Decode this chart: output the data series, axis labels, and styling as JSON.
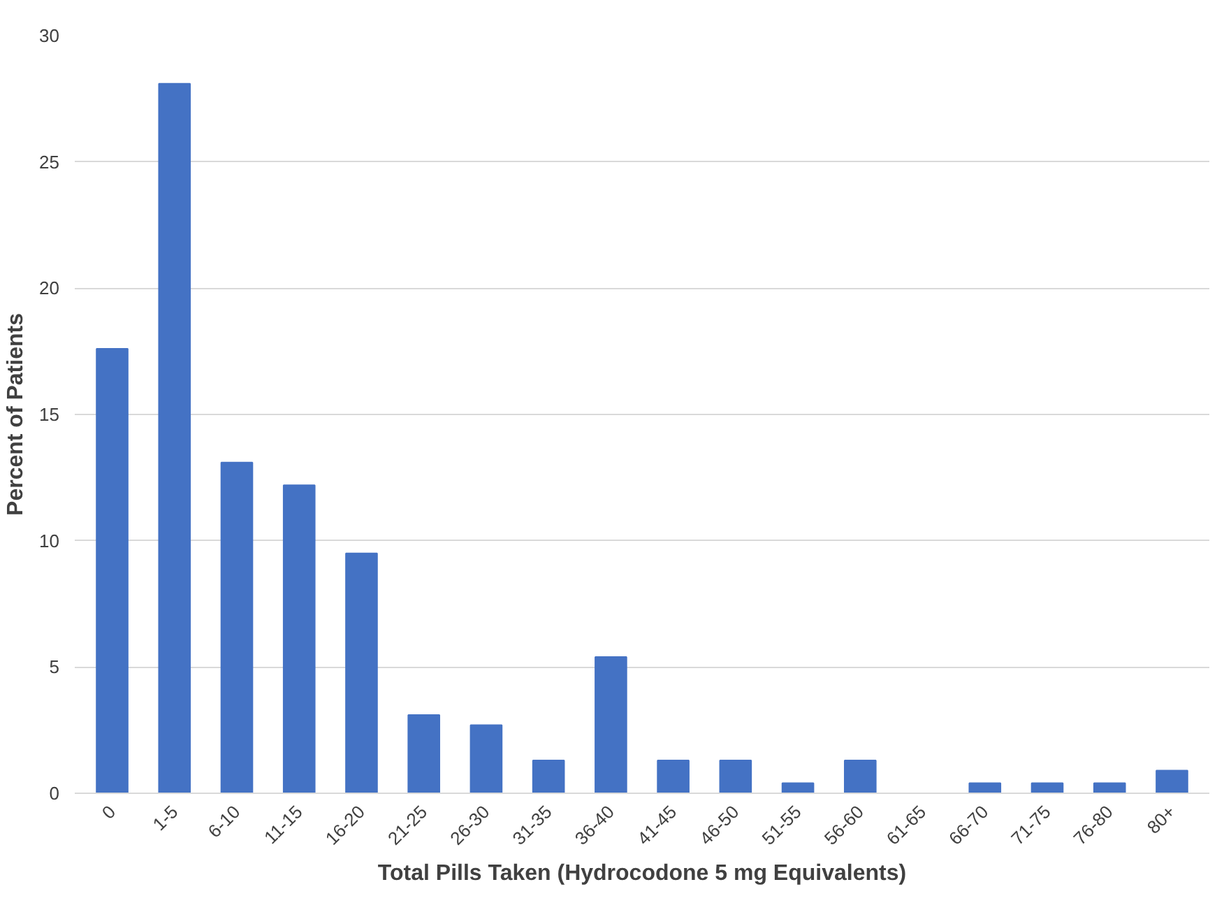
{
  "chart_data": {
    "type": "bar",
    "xlabel": "Total Pills Taken (Hydrocodone 5 mg Equivalents)",
    "ylabel": "Percent of Patients",
    "categories": [
      "0",
      "1-5",
      "6-10",
      "11-15",
      "16-20",
      "21-25",
      "26-30",
      "31-35",
      "36-40",
      "41-45",
      "46-50",
      "51-55",
      "56-60",
      "61-65",
      "66-70",
      "71-75",
      "76-80",
      "80+"
    ],
    "values": [
      17.6,
      28.1,
      13.1,
      12.2,
      9.5,
      3.1,
      2.7,
      1.3,
      5.4,
      1.3,
      1.3,
      0.4,
      1.3,
      0,
      0.4,
      0.4,
      0.4,
      0.9
    ],
    "color": "#4472c4",
    "ylim": [
      0,
      30
    ],
    "yticks": [
      0,
      5,
      10,
      15,
      20,
      25,
      30
    ],
    "grid": "y"
  }
}
